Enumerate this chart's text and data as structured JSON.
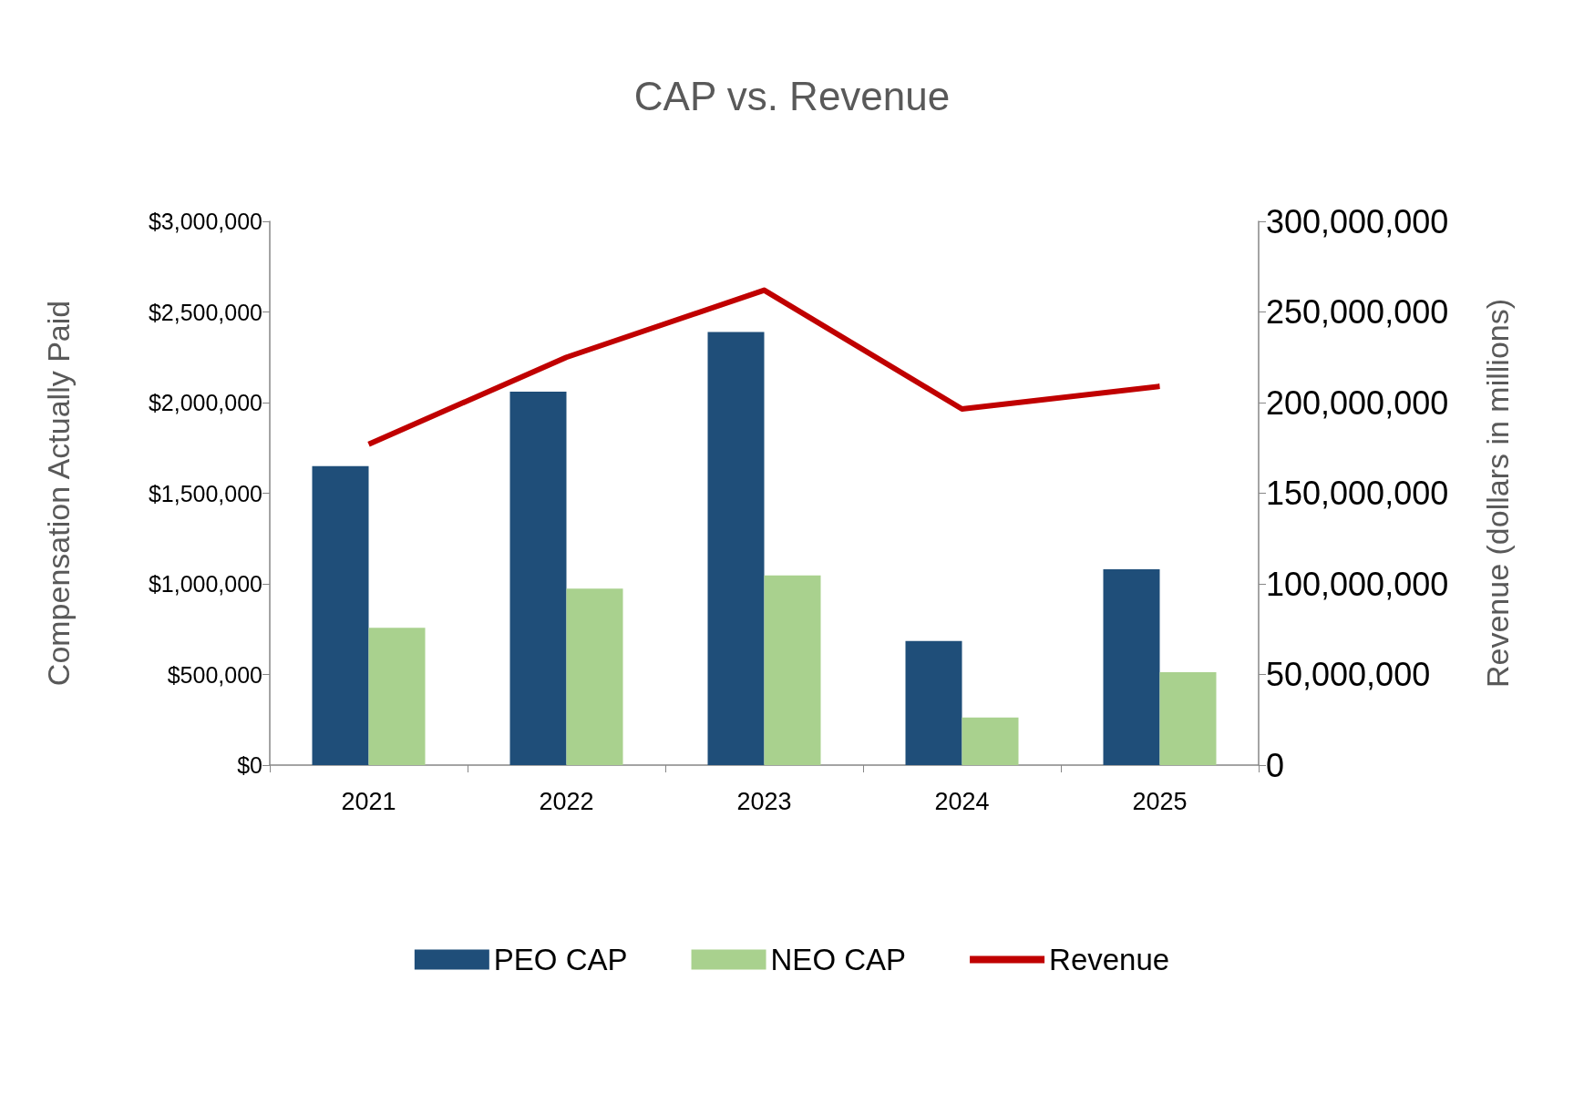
{
  "chart_data": {
    "type": "bar",
    "title": "CAP vs. Revenue",
    "ylabel": "Compensation Actually Paid",
    "y2label": "Revenue (dollars in millions)",
    "categories": [
      "2021",
      "2022",
      "2023",
      "2024",
      "2025"
    ],
    "series": [
      {
        "name": "PEO CAP",
        "color": "#1f4e79",
        "values": [
          1650000,
          2060000,
          2390000,
          685000,
          1080000
        ]
      },
      {
        "name": "NEO CAP",
        "color": "#a9d18e",
        "values": [
          757000,
          974000,
          1046000,
          262000,
          512000
        ]
      },
      {
        "name": "Revenue",
        "type": "line",
        "axis": "y2",
        "color": "#c00000",
        "marker": "none",
        "values": [
          177000000,
          225000000,
          262000000,
          196500000,
          209000000
        ]
      }
    ],
    "ylim": [
      0,
      3000000
    ],
    "yticks": [
      {
        "value": 0,
        "label": "$0"
      },
      {
        "value": 500000,
        "label": "$500,000"
      },
      {
        "value": 1000000,
        "label": "$1,000,000"
      },
      {
        "value": 1500000,
        "label": "$1,500,000"
      },
      {
        "value": 2000000,
        "label": "$2,000,000"
      },
      {
        "value": 2500000,
        "label": "$2,500,000"
      },
      {
        "value": 3000000,
        "label": "$3,000,000"
      }
    ],
    "y2lim": [
      0,
      300000000
    ],
    "y2ticks": [
      0,
      {
        "value": 50000000,
        "label": "50,000,000"
      },
      {
        "value": 100000000,
        "label": "100,000,000"
      },
      {
        "value": 150000000,
        "label": "150,000,000"
      },
      {
        "value": 200000000,
        "label": "200,000,000"
      },
      {
        "value": 250000000,
        "label": "250,000,000"
      },
      {
        "value": 300000000,
        "label": "300,000,000"
      }
    ],
    "grid": false,
    "legend": "bottom"
  }
}
